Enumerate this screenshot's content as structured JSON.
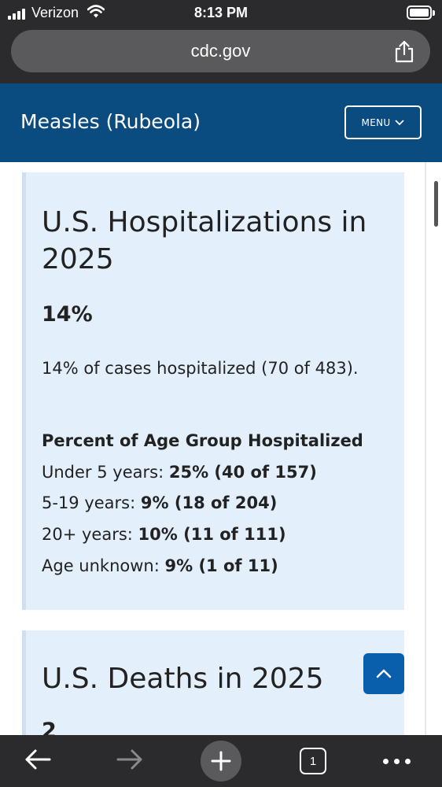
{
  "status_bar": {
    "carrier": "Verizon",
    "time": "8:13 PM",
    "signal_icon": "cellular-signal-icon",
    "wifi_icon": "wifi-icon",
    "battery_icon": "battery-icon"
  },
  "browser": {
    "url": "cdc.gov",
    "share_icon": "share-icon"
  },
  "site_header": {
    "title": "Measles (Rubeola)",
    "menu_label": "MENU",
    "menu_icon": "chevron-down-icon",
    "background_color": "#0a4b80"
  },
  "hospitalizations_card": {
    "title": "U.S. Hospitalizations in 2025",
    "percent": "14%",
    "summary": "14% of cases hospitalized (70 of 483).",
    "age_heading": "Percent of Age Group Hospitalized",
    "age_groups": [
      {
        "label": "Under 5 years:",
        "value": "25% (40 of 157)"
      },
      {
        "label": "5-19 years:",
        "value": "9% (18 of 204)"
      },
      {
        "label": "20+ years:",
        "value": "10% (11 of 111)"
      },
      {
        "label": "Age unknown:",
        "value": "9% (1 of 11)"
      }
    ],
    "background_color": "#e3effb"
  },
  "deaths_card": {
    "title": "U.S. Deaths in 2025",
    "count_partial": "2"
  },
  "back_to_top": {
    "icon": "chevron-up-icon",
    "color": "#0a5fad"
  },
  "toolbar": {
    "back_icon": "arrow-left-icon",
    "forward_icon": "arrow-right-icon",
    "new_tab_icon": "plus-icon",
    "tab_count": "1",
    "more_icon": "more-dots-icon"
  }
}
